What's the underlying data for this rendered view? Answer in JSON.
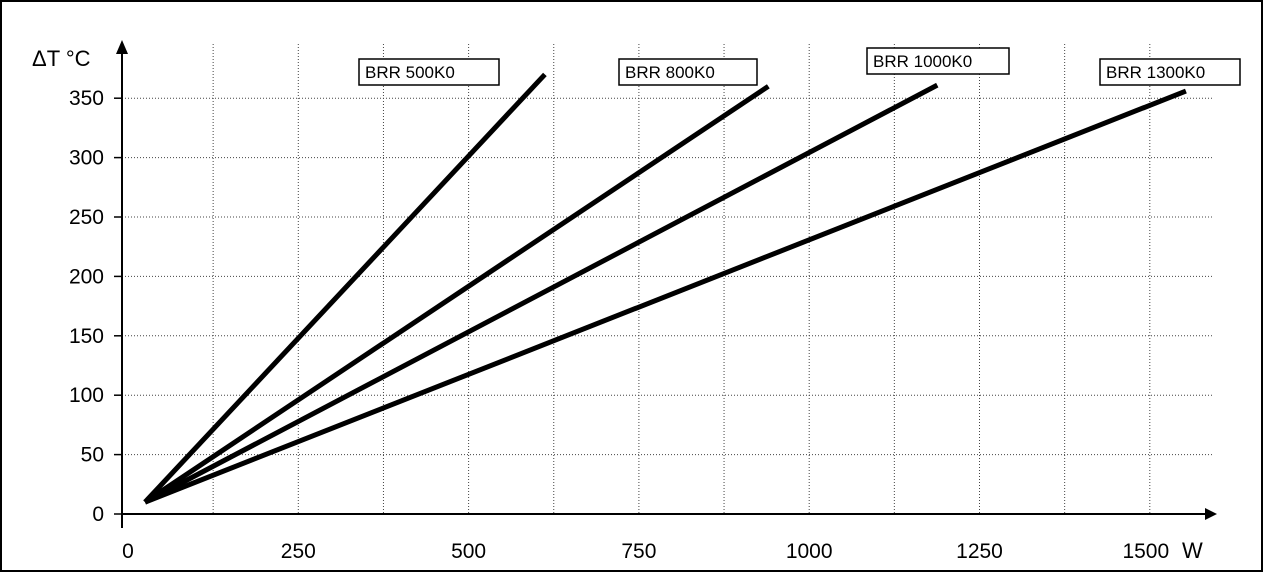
{
  "chart_data": {
    "type": "line",
    "ylabel": "ΔT °C",
    "xlabel": "W",
    "xlim": [
      0,
      1575
    ],
    "ylim": [
      0,
      380
    ],
    "x_ticks": [
      0,
      250,
      500,
      750,
      1000,
      1250,
      1500
    ],
    "x_tick_labels": [
      "0",
      "250",
      "500",
      "750",
      "1000",
      "1250",
      "1500"
    ],
    "y_ticks": [
      0,
      50,
      100,
      150,
      200,
      250,
      300,
      350
    ],
    "y_tick_labels": [
      "0",
      "50",
      "100",
      "150",
      "200",
      "250",
      "300",
      "350"
    ],
    "grid": true,
    "series": [
      {
        "name": "BRR 500K0",
        "x": [
          25,
          612
        ],
        "y": [
          10,
          370
        ]
      },
      {
        "name": "BRR 800K0",
        "x": [
          25,
          940
        ],
        "y": [
          10,
          360
        ]
      },
      {
        "name": "BRR 1000K0",
        "x": [
          25,
          1188
        ],
        "y": [
          10,
          361
        ]
      },
      {
        "name": "BRR 1300K0",
        "x": [
          25,
          1553
        ],
        "y": [
          10,
          356
        ]
      }
    ],
    "line_color": "#000000"
  }
}
